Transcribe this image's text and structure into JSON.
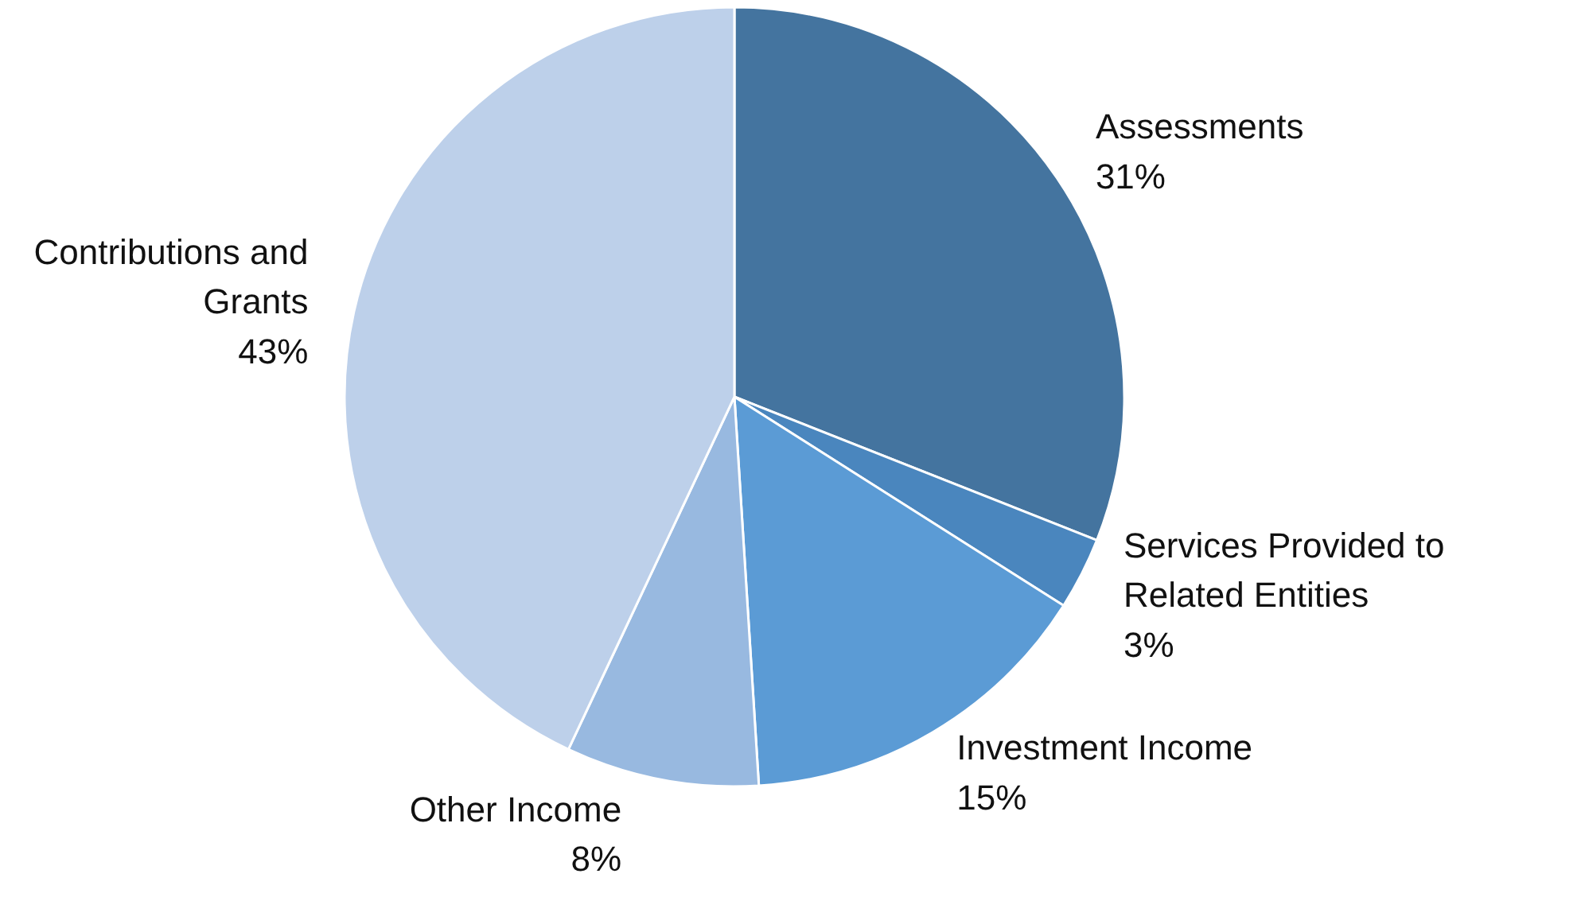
{
  "chart_data": {
    "type": "pie",
    "categories": [
      "Assessments",
      "Services Provided to Related Entities",
      "Investment Income",
      "Other Income",
      "Contributions and Grants"
    ],
    "values": [
      31,
      3,
      15,
      8,
      43
    ],
    "colors": [
      "#44749f",
      "#4a86be",
      "#5b9bd5",
      "#98b9e0",
      "#bdd0ea"
    ],
    "value_labels": [
      "31%",
      "3%",
      "15%",
      "8%",
      "43%"
    ]
  }
}
